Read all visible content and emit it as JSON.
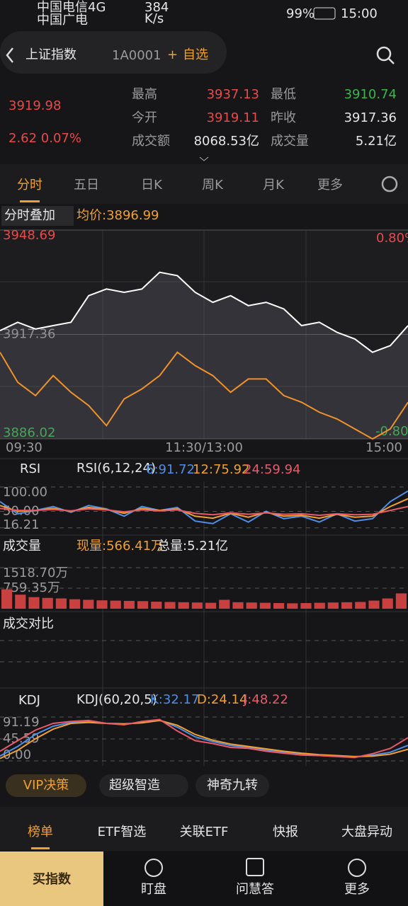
{
  "status_bar": {
    "carrier1": "中国电信4G",
    "carrier2": "中国广电",
    "speed": "384",
    "speed_unit": "K/s",
    "battery": "99%",
    "time": "15:00"
  },
  "header": {
    "title": "上证指数",
    "code": "1A0001",
    "watch": "自选"
  },
  "quote": {
    "price": "3919.98",
    "change": "2.62 0.07%",
    "stats": [
      {
        "label": "最高",
        "value": "3937.13"
      },
      {
        "label": "最低",
        "value": "3910.74"
      },
      {
        "label": "今开",
        "value": "3919.11"
      },
      {
        "label": "昨收",
        "value": "3917.36"
      },
      {
        "label": "成交额",
        "value": "8068.53亿"
      },
      {
        "label": "成交量",
        "value": "5.21亿"
      }
    ]
  },
  "tabs": [
    "分时",
    "五日",
    "日K",
    "周K",
    "月K",
    "更多"
  ],
  "intraday": {
    "overlay_label": "分时叠加",
    "avg_label": "均价:3896.99",
    "ylim": [
      3886.02,
      3948.69
    ],
    "yticks": [
      3948.69,
      3917.36,
      3886.02
    ],
    "pct_labels": [
      "0.80%",
      "-0.80%"
    ],
    "x_labels": [
      "09:30",
      "11:30/13:00",
      "15:00"
    ],
    "series": [
      {
        "color": "#ffffff",
        "values": [
          3918.5,
          3921,
          3919,
          3920,
          3921,
          3929,
          3931,
          3930,
          3931,
          3936,
          3935,
          3930,
          3927,
          3929,
          3926,
          3927,
          3925,
          3920,
          3921,
          3918,
          3916,
          3912,
          3914,
          3919.98
        ]
      },
      {
        "color": "#f0922b",
        "values": [
          3912,
          3903,
          3899,
          3905,
          3900,
          3896,
          3890,
          3898,
          3901,
          3905,
          3912,
          3908,
          3905,
          3900,
          3904,
          3904,
          3899,
          3897,
          3894,
          3892,
          3889,
          3886,
          3889,
          3897
        ]
      }
    ]
  },
  "rsi": {
    "label": "RSI",
    "params": "RSI(6,12,24)",
    "ylim": [
      10,
      100
    ],
    "yticks": [
      {
        "value": 100,
        "label": "100.00"
      },
      {
        "value": 50,
        "label": "50.00"
      },
      {
        "value": 16.21,
        "label": "16.21"
      }
    ],
    "series": [
      {
        "label": "6:91.72",
        "color": "#4f8fe8",
        "values": [
          70,
          45,
          52,
          60,
          48,
          62,
          55,
          40,
          60,
          52,
          58,
          30,
          25,
          45,
          28,
          50,
          35,
          40,
          28,
          45,
          30,
          35,
          70,
          91.72
        ]
      },
      {
        "label": "12:75.92",
        "color": "#f0a030",
        "values": [
          62,
          50,
          52,
          56,
          50,
          58,
          54,
          46,
          56,
          52,
          55,
          40,
          36,
          46,
          38,
          48,
          40,
          42,
          36,
          44,
          38,
          40,
          60,
          75.92
        ]
      },
      {
        "label": "24:59.94",
        "color": "#e85a6a",
        "values": [
          56,
          52,
          52,
          54,
          51,
          55,
          53,
          49,
          53,
          51,
          53,
          46,
          43,
          47,
          44,
          47,
          44,
          45,
          42,
          45,
          43,
          44,
          52,
          59.94
        ]
      }
    ]
  },
  "volume": {
    "label": "成交量",
    "current": "现量:566.41万",
    "total": "总量:5.21亿",
    "ylim": [
      0,
      1518.7
    ],
    "yticks": [
      {
        "value": 1518.7,
        "label": "1518.70万"
      },
      {
        "value": 759.35,
        "label": "759.35万"
      }
    ],
    "color": "#c94040",
    "values": [
      720,
      520,
      430,
      400,
      380,
      350,
      330,
      310,
      300,
      290,
      280,
      260,
      250,
      240,
      230,
      220,
      330,
      240,
      230,
      220,
      210,
      200,
      210,
      220,
      230,
      240,
      250,
      300,
      380,
      566.41
    ]
  },
  "compare": {
    "label": "成交对比"
  },
  "kdj": {
    "label": "KDJ",
    "params": "KDJ(60,20,5)",
    "ylim": [
      0,
      91.19
    ],
    "yticks": [
      {
        "value": 91.19,
        "label": "91.19"
      },
      {
        "value": 45.59,
        "label": "45.59"
      },
      {
        "value": 0,
        "label": "0.00"
      }
    ],
    "series": [
      {
        "label": "K:32.17",
        "color": "#4f8fe8",
        "values": [
          10,
          30,
          55,
          72,
          80,
          82,
          78,
          76,
          80,
          85,
          70,
          50,
          40,
          32,
          28,
          22,
          18,
          14,
          12,
          10,
          8,
          12,
          18,
          32.17
        ]
      },
      {
        "label": "D:24.14",
        "color": "#f0a030",
        "values": [
          5,
          22,
          46,
          66,
          78,
          80,
          78,
          77,
          79,
          84,
          74,
          55,
          43,
          35,
          30,
          25,
          20,
          16,
          13,
          11,
          9,
          10,
          14,
          24.14
        ]
      },
      {
        "label": "J:48.22",
        "color": "#e85a6a",
        "values": [
          20,
          42,
          64,
          78,
          82,
          84,
          78,
          75,
          82,
          86,
          62,
          42,
          36,
          28,
          26,
          20,
          16,
          12,
          11,
          9,
          7,
          15,
          26,
          48.22
        ]
      }
    ]
  },
  "chips": [
    "VIP决策",
    "超级智造",
    "神奇九转"
  ],
  "bottom_tabs": [
    "榜单",
    "ETF智选",
    "关联ETF",
    "快报",
    "大盘异动"
  ],
  "actions": {
    "buy": "买指数",
    "items": [
      "盯盘",
      "问慧答",
      "更多"
    ]
  }
}
